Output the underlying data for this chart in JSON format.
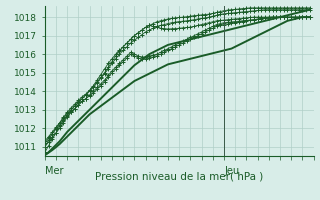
{
  "xlabel": "Pression niveau de la mer( hPa )",
  "background_color": "#d8ede8",
  "plot_bg_color": "#d8ede8",
  "grid_color": "#b0cfc8",
  "line_color": "#1a5c28",
  "ylim": [
    1010.5,
    1018.6
  ],
  "xlim": [
    0,
    72
  ],
  "yticks": [
    1011,
    1012,
    1013,
    1014,
    1015,
    1016,
    1017,
    1018
  ],
  "mer_x": 0,
  "jeu_x": 48,
  "vline_x": 48,
  "series_with_markers": [
    [
      1010.7,
      1011.05,
      1011.4,
      1011.75,
      1012.1,
      1012.4,
      1012.7,
      1012.95,
      1013.2,
      1013.4,
      1013.6,
      1013.8,
      1014.05,
      1014.3,
      1014.6,
      1014.9,
      1015.2,
      1015.5,
      1015.75,
      1016.0,
      1016.2,
      1016.4,
      1016.6,
      1016.8,
      1017.0,
      1017.15,
      1017.3,
      1017.45,
      1017.55,
      1017.65,
      1017.75,
      1017.8,
      1017.85,
      1017.9,
      1017.93,
      1017.96,
      1017.98,
      1018.0,
      1018.02,
      1018.05,
      1018.08,
      1018.1,
      1018.12,
      1018.14,
      1018.16,
      1018.2,
      1018.25,
      1018.3,
      1018.35,
      1018.38,
      1018.4,
      1018.42,
      1018.44,
      1018.46,
      1018.48,
      1018.5,
      1018.5,
      1018.5,
      1018.5,
      1018.5,
      1018.5,
      1018.5,
      1018.5,
      1018.5,
      1018.5,
      1018.5,
      1018.5,
      1018.5,
      1018.5,
      1018.5,
      1018.5,
      1018.5
    ],
    [
      1011.3,
      1011.55,
      1011.8,
      1012.05,
      1012.3,
      1012.55,
      1012.8,
      1013.0,
      1013.2,
      1013.4,
      1013.6,
      1013.8,
      1014.0,
      1014.2,
      1014.45,
      1014.7,
      1014.95,
      1015.2,
      1015.5,
      1015.75,
      1016.0,
      1016.2,
      1016.4,
      1016.6,
      1016.75,
      1016.9,
      1017.05,
      1017.2,
      1017.3,
      1017.4,
      1017.5,
      1017.55,
      1017.6,
      1017.65,
      1017.7,
      1017.73,
      1017.76,
      1017.78,
      1017.8,
      1017.83,
      1017.86,
      1017.9,
      1017.93,
      1017.96,
      1018.0,
      1018.05,
      1018.1,
      1018.15,
      1018.18,
      1018.2,
      1018.22,
      1018.24,
      1018.26,
      1018.28,
      1018.3,
      1018.32,
      1018.34,
      1018.36,
      1018.38,
      1018.4,
      1018.4,
      1018.4,
      1018.4,
      1018.4,
      1018.4,
      1018.4,
      1018.4,
      1018.4,
      1018.4,
      1018.4,
      1018.4,
      1018.4
    ],
    [
      1011.0,
      1011.35,
      1011.7,
      1012.0,
      1012.3,
      1012.6,
      1012.85,
      1013.1,
      1013.3,
      1013.5,
      1013.7,
      1013.85,
      1014.05,
      1014.25,
      1014.5,
      1014.75,
      1015.0,
      1015.3,
      1015.6,
      1015.9,
      1016.15,
      1016.4,
      1016.6,
      1016.8,
      1017.0,
      1017.15,
      1017.3,
      1017.45,
      1017.55,
      1017.5,
      1017.45,
      1017.4,
      1017.38,
      1017.36,
      1017.37,
      1017.38,
      1017.4,
      1017.42,
      1017.44,
      1017.46,
      1017.5,
      1017.55,
      1017.6,
      1017.65,
      1017.7,
      1017.75,
      1017.8,
      1017.82,
      1017.84,
      1017.86,
      1017.88,
      1017.9,
      1017.92,
      1017.94,
      1017.96,
      1017.98,
      1018.0,
      1018.0,
      1018.0,
      1018.0,
      1018.0,
      1018.0,
      1018.0,
      1018.0,
      1018.0,
      1018.0,
      1018.0,
      1018.0,
      1018.0,
      1018.0,
      1018.0,
      1018.0
    ],
    [
      1011.2,
      1011.45,
      1011.7,
      1011.95,
      1012.2,
      1012.45,
      1012.65,
      1012.85,
      1013.05,
      1013.25,
      1013.45,
      1013.6,
      1013.8,
      1014.0,
      1014.2,
      1014.4,
      1014.6,
      1014.85,
      1015.1,
      1015.3,
      1015.5,
      1015.7,
      1015.9,
      1016.1,
      1016.0,
      1015.9,
      1015.85,
      1015.85,
      1015.9,
      1015.95,
      1016.0,
      1016.1,
      1016.2,
      1016.3,
      1016.4,
      1016.5,
      1016.6,
      1016.7,
      1016.8,
      1016.9,
      1017.0,
      1017.1,
      1017.2,
      1017.3,
      1017.4,
      1017.5,
      1017.6,
      1017.65,
      1017.7,
      1017.72,
      1017.74,
      1017.76,
      1017.78,
      1017.8,
      1017.82,
      1017.84,
      1017.86,
      1017.88,
      1017.9,
      1017.93,
      1017.96,
      1018.0,
      1018.0,
      1018.0,
      1018.0,
      1018.0,
      1018.0,
      1018.0,
      1018.0,
      1018.0,
      1018.0,
      1018.0
    ],
    [
      1011.0,
      1011.25,
      1011.5,
      1011.75,
      1012.0,
      1012.3,
      1012.6,
      1012.85,
      1013.05,
      1013.25,
      1013.45,
      1013.6,
      1013.75,
      1013.9,
      1014.1,
      1014.3,
      1014.5,
      1014.75,
      1015.0,
      1015.2,
      1015.4,
      1015.6,
      1015.8,
      1016.0,
      1015.9,
      1015.8,
      1015.75,
      1015.75,
      1015.8,
      1015.85,
      1015.9,
      1016.0,
      1016.1,
      1016.2,
      1016.3,
      1016.4,
      1016.5,
      1016.6,
      1016.7,
      1016.8,
      1016.9,
      1017.0,
      1017.1,
      1017.2,
      1017.3,
      1017.4,
      1017.5,
      1017.55,
      1017.6,
      1017.63,
      1017.66,
      1017.7,
      1017.73,
      1017.76,
      1017.8,
      1017.83,
      1017.86,
      1017.9,
      1017.93,
      1017.96,
      1018.0,
      1018.0,
      1018.0,
      1018.0,
      1018.0,
      1018.0,
      1018.0,
      1018.0,
      1018.0,
      1018.0,
      1018.0,
      1018.0
    ]
  ],
  "smooth_lines": [
    [
      1010.55,
      1010.7,
      1010.9,
      1011.1,
      1011.3,
      1011.55,
      1011.8,
      1012.0,
      1012.2,
      1012.4,
      1012.6,
      1012.8,
      1013.0,
      1013.2,
      1013.4,
      1013.6,
      1013.8,
      1014.0,
      1014.2,
      1014.4,
      1014.6,
      1014.8,
      1015.0,
      1015.2,
      1015.4,
      1015.55,
      1015.7,
      1015.85,
      1016.0,
      1016.1,
      1016.2,
      1016.3,
      1016.4,
      1016.5,
      1016.55,
      1016.6,
      1016.65,
      1016.7,
      1016.75,
      1016.8,
      1016.85,
      1016.9,
      1016.95,
      1017.0,
      1017.05,
      1017.1,
      1017.15,
      1017.2,
      1017.25,
      1017.3,
      1017.35,
      1017.4,
      1017.45,
      1017.5,
      1017.55,
      1017.6,
      1017.65,
      1017.7,
      1017.75,
      1017.8,
      1017.85,
      1017.9,
      1017.95,
      1018.0,
      1018.05,
      1018.1,
      1018.15,
      1018.2,
      1018.25,
      1018.3,
      1018.35,
      1018.4
    ],
    [
      1010.55,
      1010.68,
      1010.82,
      1010.98,
      1011.15,
      1011.35,
      1011.55,
      1011.75,
      1011.95,
      1012.15,
      1012.35,
      1012.55,
      1012.75,
      1012.9,
      1013.05,
      1013.2,
      1013.35,
      1013.5,
      1013.65,
      1013.8,
      1013.95,
      1014.1,
      1014.25,
      1014.4,
      1014.55,
      1014.65,
      1014.75,
      1014.85,
      1014.95,
      1015.05,
      1015.15,
      1015.25,
      1015.35,
      1015.45,
      1015.5,
      1015.55,
      1015.6,
      1015.65,
      1015.7,
      1015.75,
      1015.8,
      1015.85,
      1015.9,
      1015.95,
      1016.0,
      1016.05,
      1016.1,
      1016.15,
      1016.2,
      1016.25,
      1016.3,
      1016.4,
      1016.5,
      1016.6,
      1016.7,
      1016.8,
      1016.9,
      1017.0,
      1017.1,
      1017.2,
      1017.3,
      1017.4,
      1017.5,
      1017.6,
      1017.7,
      1017.8,
      1017.85,
      1017.9,
      1017.95,
      1018.0,
      1018.0,
      1018.0
    ]
  ]
}
